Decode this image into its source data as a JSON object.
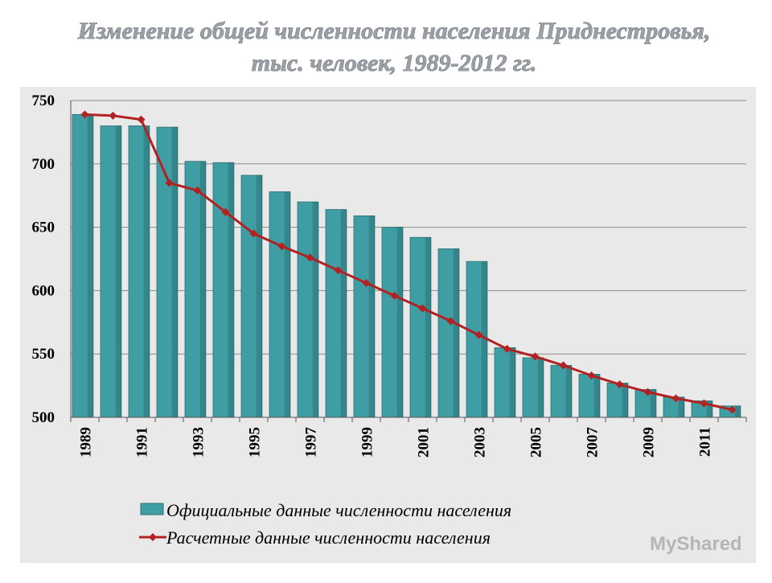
{
  "chart_data": {
    "type": "bar",
    "title": "Изменение общей численности населения Приднестровья,",
    "subtitle": "тыс. человек, 1989-2012 гг.",
    "categories": [
      "1989",
      null,
      "1991",
      null,
      "1993",
      null,
      "1995",
      null,
      "1997",
      null,
      "1999",
      null,
      "2001",
      null,
      "2003",
      null,
      "2005",
      null,
      "2007",
      null,
      "2009",
      null,
      "2011",
      null
    ],
    "series": [
      {
        "name": "Официальные данные численности населения",
        "type": "bar",
        "color": "#3f9ea3",
        "values": [
          739,
          730,
          730,
          729,
          702,
          701,
          691,
          678,
          670,
          664,
          659,
          650,
          642,
          633,
          623,
          555,
          547,
          541,
          534,
          527,
          522,
          516,
          513,
          509
        ]
      },
      {
        "name": "Расчетные данные численности населения",
        "type": "line",
        "color": "#b22222",
        "values": [
          739,
          738,
          735,
          685,
          679,
          662,
          645,
          635,
          626,
          616,
          606,
          596,
          586,
          576,
          565,
          554,
          548,
          541,
          533,
          526,
          520,
          515,
          511,
          506
        ]
      }
    ],
    "ylim": [
      500,
      750
    ],
    "yticks": [
      500,
      550,
      600,
      650,
      700,
      750
    ],
    "grid": true,
    "legend": "bottom",
    "watermark": "MyShared"
  }
}
